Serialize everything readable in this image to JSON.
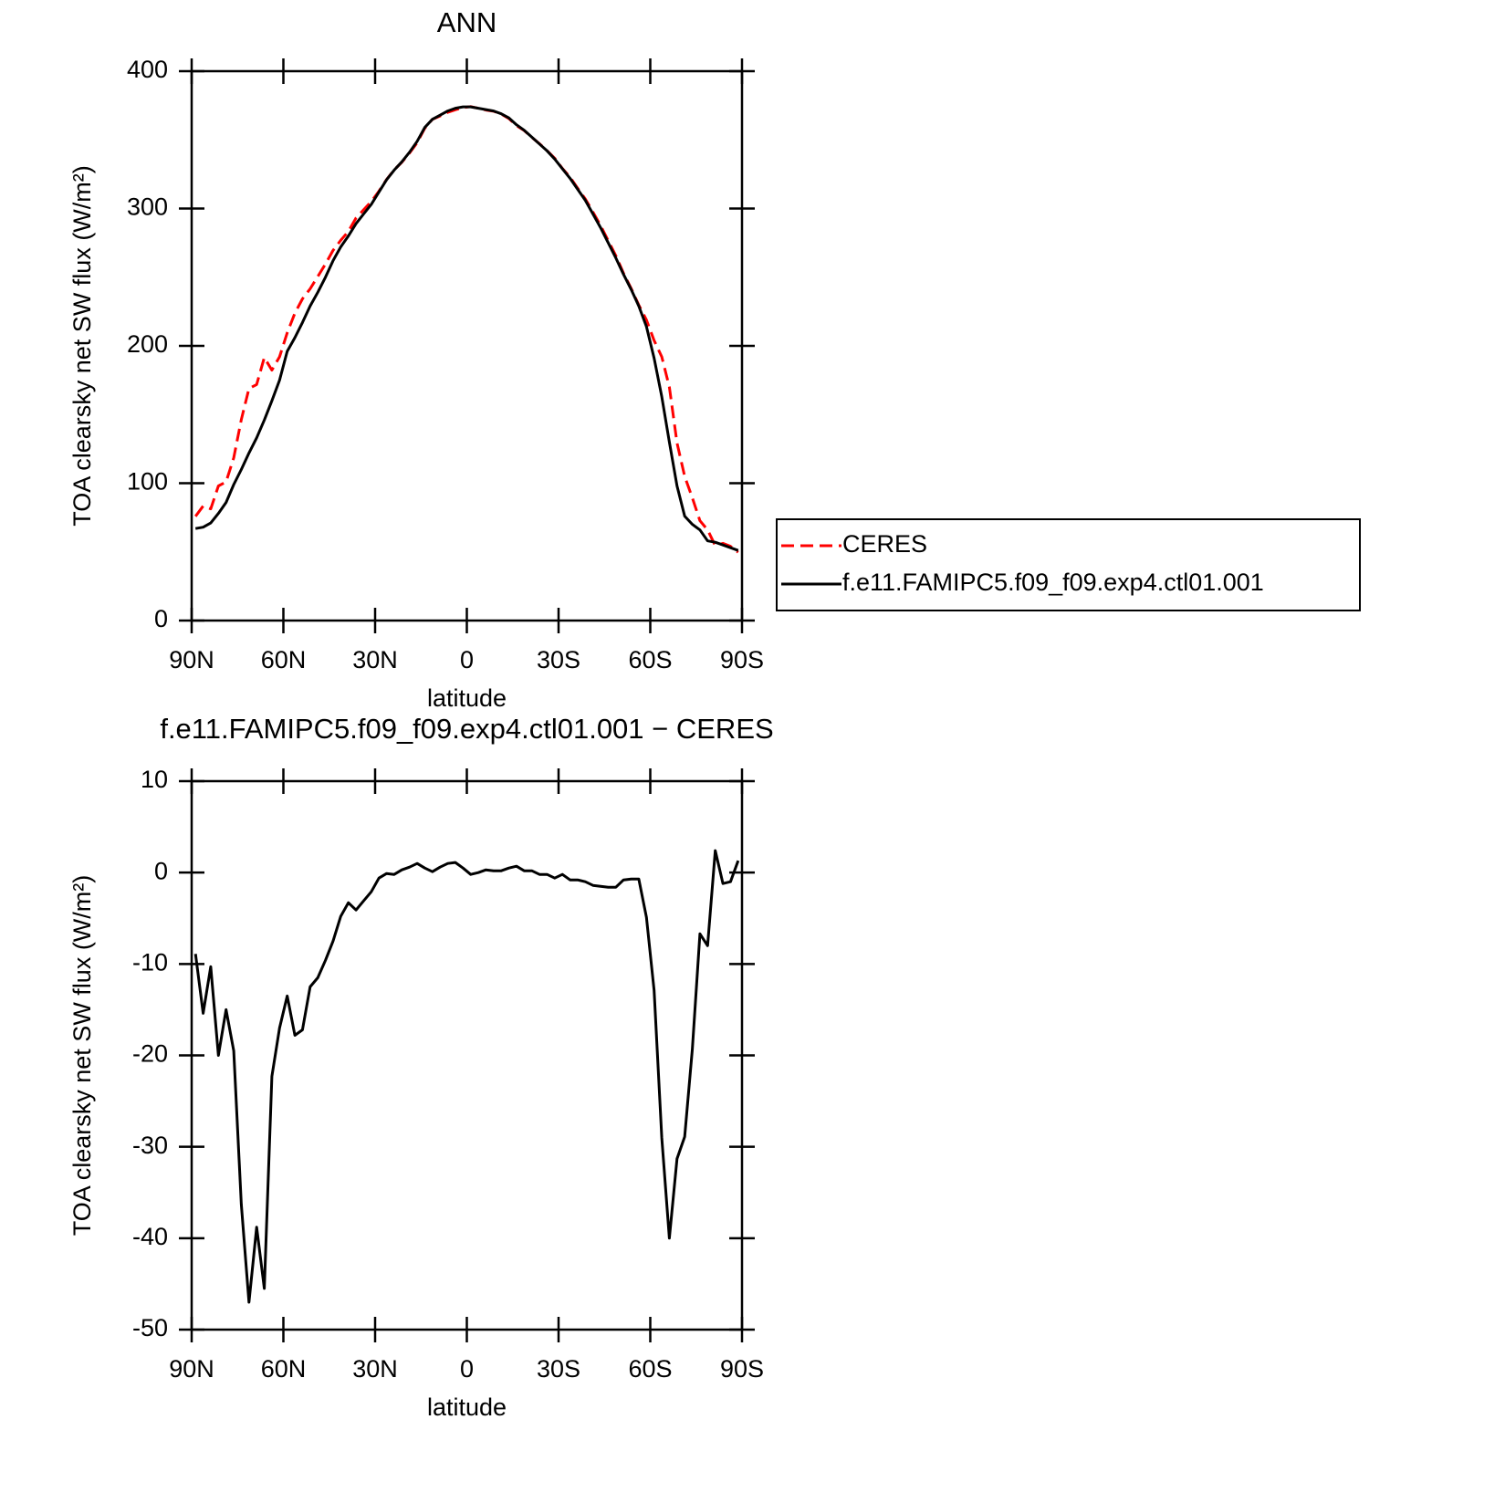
{
  "chart_data": [
    {
      "type": "line",
      "title": "ANN",
      "xlabel": "latitude",
      "ylabel": "TOA clearsky net SW flux (W/m²)",
      "x": [
        88.75,
        86.25,
        83.75,
        81.25,
        78.75,
        76.25,
        73.75,
        71.25,
        68.75,
        66.25,
        63.75,
        61.25,
        58.75,
        56.25,
        53.75,
        51.25,
        48.75,
        46.25,
        43.75,
        41.25,
        38.75,
        36.25,
        33.75,
        31.25,
        28.75,
        26.25,
        23.75,
        21.25,
        18.75,
        16.25,
        13.75,
        11.25,
        8.75,
        6.25,
        3.75,
        1.25,
        -1.25,
        -3.75,
        -6.25,
        -8.75,
        -11.25,
        -13.75,
        -16.25,
        -18.75,
        -21.25,
        -23.75,
        -26.25,
        -28.75,
        -31.25,
        -33.75,
        -36.25,
        -38.75,
        -41.25,
        -43.75,
        -46.25,
        -48.75,
        -51.25,
        -53.75,
        -56.25,
        -58.75,
        -61.25,
        -63.75,
        -66.25,
        -68.75,
        -71.25,
        -73.75,
        -76.25,
        -78.75,
        -81.25,
        -83.75,
        -86.25,
        -88.75
      ],
      "series": [
        {
          "name": "CERES",
          "color": "#ff0000",
          "dash": "dashed",
          "values": [
            75.9,
            83.4,
            81.3,
            98,
            101,
            118.5,
            146.3,
            169,
            171.8,
            191.5,
            182.3,
            192,
            209.5,
            223.8,
            234.2,
            241.5,
            250.5,
            259.6,
            269.5,
            276.8,
            283.3,
            293.1,
            299.1,
            305.1,
            312.6,
            321.1,
            328.2,
            333.7,
            340.4,
            348,
            358.5,
            364.9,
            367.4,
            370,
            371.9,
            373.5,
            374.2,
            373,
            371.7,
            370.8,
            368.8,
            365.5,
            360.3,
            356.8,
            351.8,
            347.2,
            342.2,
            336.6,
            329.2,
            322.8,
            314.8,
            307,
            297.4,
            287.5,
            276.6,
            265.6,
            252.8,
            241.7,
            229.7,
            218.9,
            203.9,
            192,
            170,
            129.3,
            104.9,
            89.3,
            72.7,
            66,
            54.6,
            56.2,
            54,
            49.7
          ]
        },
        {
          "name": "f.e11.FAMIPC5.f09_f09.exp4.ctl01.001",
          "color": "#000000",
          "dash": "solid",
          "values": [
            67,
            68,
            71,
            78,
            86,
            99,
            110,
            122,
            133,
            146,
            160,
            175,
            196,
            206,
            217,
            229,
            239,
            250,
            262,
            272,
            280,
            289,
            296,
            303,
            312,
            321,
            328,
            334,
            341,
            349,
            359,
            365,
            368,
            371,
            373,
            374,
            374,
            373,
            372,
            371,
            369,
            366,
            361,
            357,
            352,
            347,
            342,
            336,
            329,
            322,
            314,
            306,
            296,
            286,
            275,
            264,
            252,
            241,
            229,
            214,
            191,
            163,
            130,
            98,
            76,
            70,
            66,
            58,
            57,
            55,
            53,
            51
          ]
        }
      ],
      "xlim": [
        90,
        -90
      ],
      "xticks": [
        {
          "value": 90,
          "label": "90N"
        },
        {
          "value": 60,
          "label": "60N"
        },
        {
          "value": 30,
          "label": "30N"
        },
        0,
        {
          "value": -30,
          "label": "30S"
        },
        {
          "value": -60,
          "label": "60S"
        },
        {
          "value": -90,
          "label": "90S"
        }
      ],
      "ylim": [
        0,
        400
      ],
      "yticks": [
        0,
        100,
        200,
        300,
        400
      ],
      "legend": "right"
    },
    {
      "type": "line",
      "title": "f.e11.FAMIPC5.f09_f09.exp4.ctl01.001 − CERES",
      "xlabel": "latitude",
      "ylabel": "TOA clearsky net SW flux (W/m²)",
      "x": [
        88.75,
        86.25,
        83.75,
        81.25,
        78.75,
        76.25,
        73.75,
        71.25,
        68.75,
        66.25,
        63.75,
        61.25,
        58.75,
        56.25,
        53.75,
        51.25,
        48.75,
        46.25,
        43.75,
        41.25,
        38.75,
        36.25,
        33.75,
        31.25,
        28.75,
        26.25,
        23.75,
        21.25,
        18.75,
        16.25,
        13.75,
        11.25,
        8.75,
        6.25,
        3.75,
        1.25,
        -1.25,
        -3.75,
        -6.25,
        -8.75,
        -11.25,
        -13.75,
        -16.25,
        -18.75,
        -21.25,
        -23.75,
        -26.25,
        -28.75,
        -31.25,
        -33.75,
        -36.25,
        -38.75,
        -41.25,
        -43.75,
        -46.25,
        -48.75,
        -51.25,
        -53.75,
        -56.25,
        -58.75,
        -61.25,
        -63.75,
        -66.25,
        -68.75,
        -71.25,
        -73.75,
        -76.25,
        -78.75,
        -81.25,
        -83.75,
        -86.25,
        -88.75
      ],
      "color": "#000000",
      "values": [
        -8.9,
        -15.4,
        -10.3,
        -20,
        -15,
        -19.5,
        -36.3,
        -47,
        -38.8,
        -45.5,
        -22.3,
        -17,
        -13.5,
        -17.8,
        -17.2,
        -12.5,
        -11.5,
        -9.6,
        -7.5,
        -4.8,
        -3.3,
        -4.1,
        -3.1,
        -2.1,
        -0.6,
        -0.1,
        -0.2,
        0.3,
        0.6,
        1,
        0.5,
        0.1,
        0.6,
        1,
        1.1,
        0.5,
        -0.2,
        0,
        0.3,
        0.2,
        0.2,
        0.5,
        0.7,
        0.2,
        0.2,
        -0.2,
        -0.2,
        -0.6,
        -0.2,
        -0.8,
        -0.8,
        -1,
        -1.4,
        -1.5,
        -1.6,
        -1.6,
        -0.8,
        -0.7,
        -0.7,
        -4.9,
        -12.9,
        -29,
        -40,
        -31.3,
        -28.9,
        -19.3,
        -6.7,
        -8,
        2.4,
        -1.2,
        -1,
        1.3
      ],
      "xlim": [
        90,
        -90
      ],
      "xticks": [
        {
          "value": 90,
          "label": "90N"
        },
        {
          "value": 60,
          "label": "60N"
        },
        {
          "value": 30,
          "label": "30N"
        },
        0,
        {
          "value": -30,
          "label": "30S"
        },
        {
          "value": -60,
          "label": "60S"
        },
        {
          "value": -90,
          "label": "90S"
        }
      ],
      "ylim": [
        -50,
        10
      ],
      "yticks": [
        -50,
        -40,
        -30,
        -20,
        -10,
        0,
        10
      ]
    }
  ]
}
